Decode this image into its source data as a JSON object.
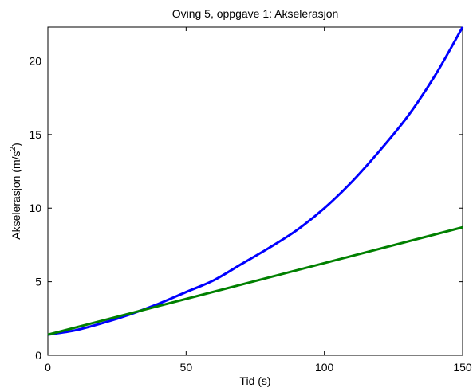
{
  "chart_data": {
    "type": "line",
    "title": "Oving 5, oppgave 1: Akselerasjon",
    "xlabel": "Tid (s)",
    "ylabel": "Akselerasjon (m/s",
    "ylabel_superscript": "2",
    "ylabel_suffix": ")",
    "xlim": [
      0,
      150
    ],
    "ylim": [
      0,
      22.3
    ],
    "xticks": [
      0,
      50,
      100,
      150
    ],
    "yticks": [
      0,
      5,
      10,
      15,
      20
    ],
    "grid": false,
    "series": [
      {
        "color": "#0000ff",
        "x": [
          0,
          10,
          20,
          30,
          40,
          50,
          60,
          70,
          80,
          90,
          100,
          110,
          120,
          130,
          140,
          150
        ],
        "y": [
          1.4,
          1.7,
          2.2,
          2.8,
          3.5,
          4.3,
          5.1,
          6.2,
          7.3,
          8.5,
          10.0,
          11.8,
          13.9,
          16.2,
          19.0,
          22.3
        ]
      },
      {
        "color": "#008000",
        "x": [
          0,
          150
        ],
        "y": [
          1.4,
          8.7
        ]
      }
    ]
  }
}
